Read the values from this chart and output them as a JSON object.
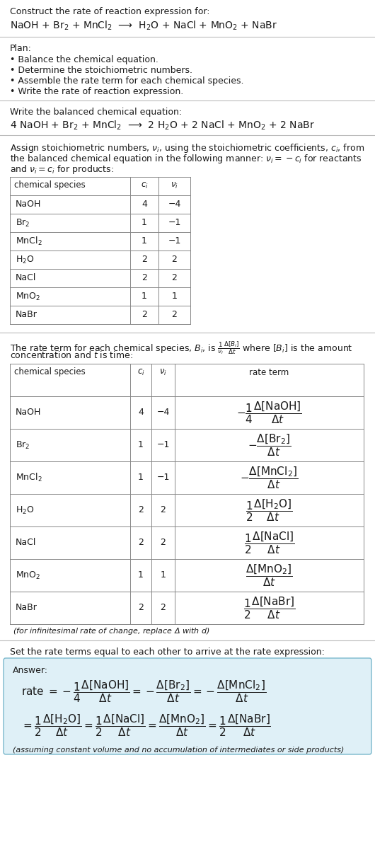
{
  "bg_color": "#ffffff",
  "answer_bg_color": "#dff0f7",
  "answer_border_color": "#7ab8cc",
  "text_color": "#1a1a1a",
  "title_line1": "Construct the rate of reaction expression for:",
  "title_line2_parts": [
    "NaOH + Br",
    "2",
    " + MnCl",
    "2",
    "  ⟶  H",
    "2",
    "O + NaCl + MnO",
    "2",
    " + NaBr"
  ],
  "plan_header": "Plan:",
  "plan_items": [
    "• Balance the chemical equation.",
    "• Determine the stoichiometric numbers.",
    "• Assemble the rate term for each chemical species.",
    "• Write the rate of reaction expression."
  ],
  "balanced_header": "Write the balanced chemical equation:",
  "balanced_eq": "4 NaOH + Br$_2$ + MnCl$_2$  ⟶  2 H$_2$O + 2 NaCl + MnO$_2$ + 2 NaBr",
  "assign_text": [
    "Assign stoichiometric numbers, $\\nu_i$, using the stoichiometric coefficients, $c_i$, from",
    "the balanced chemical equation in the following manner: $\\nu_i = -c_i$ for reactants",
    "and $\\nu_i = c_i$ for products:"
  ],
  "table1_headers": [
    "chemical species",
    "$c_i$",
    "$\\nu_i$"
  ],
  "table1_rows": [
    [
      "NaOH",
      "4",
      "−4"
    ],
    [
      "Br$_2$",
      "1",
      "−1"
    ],
    [
      "MnCl$_2$",
      "1",
      "−1"
    ],
    [
      "H$_2$O",
      "2",
      "2"
    ],
    [
      "NaCl",
      "2",
      "2"
    ],
    [
      "MnO$_2$",
      "1",
      "1"
    ],
    [
      "NaBr",
      "2",
      "2"
    ]
  ],
  "rate_text": [
    "The rate term for each chemical species, $B_i$, is $\\frac{1}{\\nu_i}\\frac{\\Delta[B_i]}{\\Delta t}$ where $[B_i]$ is the amount",
    "concentration and $t$ is time:"
  ],
  "table2_headers": [
    "chemical species",
    "$c_i$",
    "$\\nu_i$",
    "rate term"
  ],
  "table2_rows": [
    [
      "NaOH",
      "4",
      "−4",
      "$-\\dfrac{1}{4}\\dfrac{\\Delta[\\mathrm{NaOH}]}{\\Delta t}$"
    ],
    [
      "Br$_2$",
      "1",
      "−1",
      "$-\\dfrac{\\Delta[\\mathrm{Br_2}]}{\\Delta t}$"
    ],
    [
      "MnCl$_2$",
      "1",
      "−1",
      "$-\\dfrac{\\Delta[\\mathrm{MnCl_2}]}{\\Delta t}$"
    ],
    [
      "H$_2$O",
      "2",
      "2",
      "$\\dfrac{1}{2}\\dfrac{\\Delta[\\mathrm{H_2O}]}{\\Delta t}$"
    ],
    [
      "NaCl",
      "2",
      "2",
      "$\\dfrac{1}{2}\\dfrac{\\Delta[\\mathrm{NaCl}]}{\\Delta t}$"
    ],
    [
      "MnO$_2$",
      "1",
      "1",
      "$\\dfrac{\\Delta[\\mathrm{MnO_2}]}{\\Delta t}$"
    ],
    [
      "NaBr",
      "2",
      "2",
      "$\\dfrac{1}{2}\\dfrac{\\Delta[\\mathrm{NaBr}]}{\\Delta t}$"
    ]
  ],
  "infinitesimal_note": "(for infinitesimal rate of change, replace Δ with $d$)",
  "set_equal_text": "Set the rate terms equal to each other to arrive at the rate expression:",
  "answer_label": "Answer:",
  "answer_line1": "rate $= -\\dfrac{1}{4}\\dfrac{\\Delta[\\mathrm{NaOH}]}{\\Delta t} = -\\dfrac{\\Delta[\\mathrm{Br_2}]}{\\Delta t} = -\\dfrac{\\Delta[\\mathrm{MnCl_2}]}{\\Delta t}$",
  "answer_line2": "$= \\dfrac{1}{2}\\dfrac{\\Delta[\\mathrm{H_2O}]}{\\Delta t} = \\dfrac{1}{2}\\dfrac{\\Delta[\\mathrm{NaCl}]}{\\Delta t} = \\dfrac{\\Delta[\\mathrm{MnO_2}]}{\\Delta t} = \\dfrac{1}{2}\\dfrac{\\Delta[\\mathrm{NaBr}]}{\\Delta t}$",
  "answer_note": "(assuming constant volume and no accumulation of intermediates or side products)",
  "fs": 9.0,
  "fs_eq": 10.0,
  "fs_small": 8.0,
  "lm": 14,
  "fig_w": 5.3,
  "fig_h": 12.04,
  "dpi": 100
}
